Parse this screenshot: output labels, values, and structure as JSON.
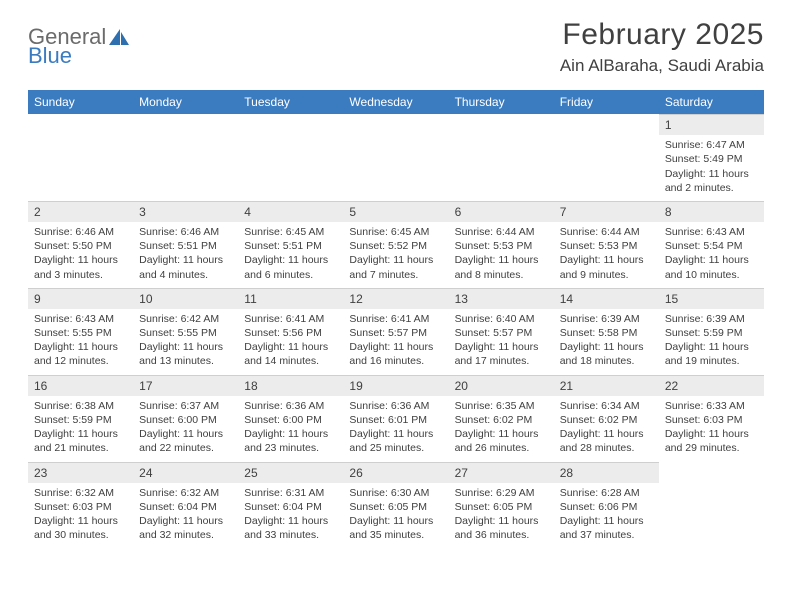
{
  "logo": {
    "general": "General",
    "blue": "Blue"
  },
  "title": "February 2025",
  "location": "Ain AlBaraha, Saudi Arabia",
  "colors": {
    "header_bg": "#3b7bbf",
    "header_text": "#ffffff",
    "daynum_bg": "#ececec",
    "text": "#404040",
    "border": "#cfcfcf"
  },
  "weekdays": [
    "Sunday",
    "Monday",
    "Tuesday",
    "Wednesday",
    "Thursday",
    "Friday",
    "Saturday"
  ],
  "weeks": [
    [
      null,
      null,
      null,
      null,
      null,
      null,
      {
        "n": "1",
        "sr": "Sunrise: 6:47 AM",
        "ss": "Sunset: 5:49 PM",
        "dl": "Daylight: 11 hours and 2 minutes."
      }
    ],
    [
      {
        "n": "2",
        "sr": "Sunrise: 6:46 AM",
        "ss": "Sunset: 5:50 PM",
        "dl": "Daylight: 11 hours and 3 minutes."
      },
      {
        "n": "3",
        "sr": "Sunrise: 6:46 AM",
        "ss": "Sunset: 5:51 PM",
        "dl": "Daylight: 11 hours and 4 minutes."
      },
      {
        "n": "4",
        "sr": "Sunrise: 6:45 AM",
        "ss": "Sunset: 5:51 PM",
        "dl": "Daylight: 11 hours and 6 minutes."
      },
      {
        "n": "5",
        "sr": "Sunrise: 6:45 AM",
        "ss": "Sunset: 5:52 PM",
        "dl": "Daylight: 11 hours and 7 minutes."
      },
      {
        "n": "6",
        "sr": "Sunrise: 6:44 AM",
        "ss": "Sunset: 5:53 PM",
        "dl": "Daylight: 11 hours and 8 minutes."
      },
      {
        "n": "7",
        "sr": "Sunrise: 6:44 AM",
        "ss": "Sunset: 5:53 PM",
        "dl": "Daylight: 11 hours and 9 minutes."
      },
      {
        "n": "8",
        "sr": "Sunrise: 6:43 AM",
        "ss": "Sunset: 5:54 PM",
        "dl": "Daylight: 11 hours and 10 minutes."
      }
    ],
    [
      {
        "n": "9",
        "sr": "Sunrise: 6:43 AM",
        "ss": "Sunset: 5:55 PM",
        "dl": "Daylight: 11 hours and 12 minutes."
      },
      {
        "n": "10",
        "sr": "Sunrise: 6:42 AM",
        "ss": "Sunset: 5:55 PM",
        "dl": "Daylight: 11 hours and 13 minutes."
      },
      {
        "n": "11",
        "sr": "Sunrise: 6:41 AM",
        "ss": "Sunset: 5:56 PM",
        "dl": "Daylight: 11 hours and 14 minutes."
      },
      {
        "n": "12",
        "sr": "Sunrise: 6:41 AM",
        "ss": "Sunset: 5:57 PM",
        "dl": "Daylight: 11 hours and 16 minutes."
      },
      {
        "n": "13",
        "sr": "Sunrise: 6:40 AM",
        "ss": "Sunset: 5:57 PM",
        "dl": "Daylight: 11 hours and 17 minutes."
      },
      {
        "n": "14",
        "sr": "Sunrise: 6:39 AM",
        "ss": "Sunset: 5:58 PM",
        "dl": "Daylight: 11 hours and 18 minutes."
      },
      {
        "n": "15",
        "sr": "Sunrise: 6:39 AM",
        "ss": "Sunset: 5:59 PM",
        "dl": "Daylight: 11 hours and 19 minutes."
      }
    ],
    [
      {
        "n": "16",
        "sr": "Sunrise: 6:38 AM",
        "ss": "Sunset: 5:59 PM",
        "dl": "Daylight: 11 hours and 21 minutes."
      },
      {
        "n": "17",
        "sr": "Sunrise: 6:37 AM",
        "ss": "Sunset: 6:00 PM",
        "dl": "Daylight: 11 hours and 22 minutes."
      },
      {
        "n": "18",
        "sr": "Sunrise: 6:36 AM",
        "ss": "Sunset: 6:00 PM",
        "dl": "Daylight: 11 hours and 23 minutes."
      },
      {
        "n": "19",
        "sr": "Sunrise: 6:36 AM",
        "ss": "Sunset: 6:01 PM",
        "dl": "Daylight: 11 hours and 25 minutes."
      },
      {
        "n": "20",
        "sr": "Sunrise: 6:35 AM",
        "ss": "Sunset: 6:02 PM",
        "dl": "Daylight: 11 hours and 26 minutes."
      },
      {
        "n": "21",
        "sr": "Sunrise: 6:34 AM",
        "ss": "Sunset: 6:02 PM",
        "dl": "Daylight: 11 hours and 28 minutes."
      },
      {
        "n": "22",
        "sr": "Sunrise: 6:33 AM",
        "ss": "Sunset: 6:03 PM",
        "dl": "Daylight: 11 hours and 29 minutes."
      }
    ],
    [
      {
        "n": "23",
        "sr": "Sunrise: 6:32 AM",
        "ss": "Sunset: 6:03 PM",
        "dl": "Daylight: 11 hours and 30 minutes."
      },
      {
        "n": "24",
        "sr": "Sunrise: 6:32 AM",
        "ss": "Sunset: 6:04 PM",
        "dl": "Daylight: 11 hours and 32 minutes."
      },
      {
        "n": "25",
        "sr": "Sunrise: 6:31 AM",
        "ss": "Sunset: 6:04 PM",
        "dl": "Daylight: 11 hours and 33 minutes."
      },
      {
        "n": "26",
        "sr": "Sunrise: 6:30 AM",
        "ss": "Sunset: 6:05 PM",
        "dl": "Daylight: 11 hours and 35 minutes."
      },
      {
        "n": "27",
        "sr": "Sunrise: 6:29 AM",
        "ss": "Sunset: 6:05 PM",
        "dl": "Daylight: 11 hours and 36 minutes."
      },
      {
        "n": "28",
        "sr": "Sunrise: 6:28 AM",
        "ss": "Sunset: 6:06 PM",
        "dl": "Daylight: 11 hours and 37 minutes."
      },
      null
    ]
  ]
}
